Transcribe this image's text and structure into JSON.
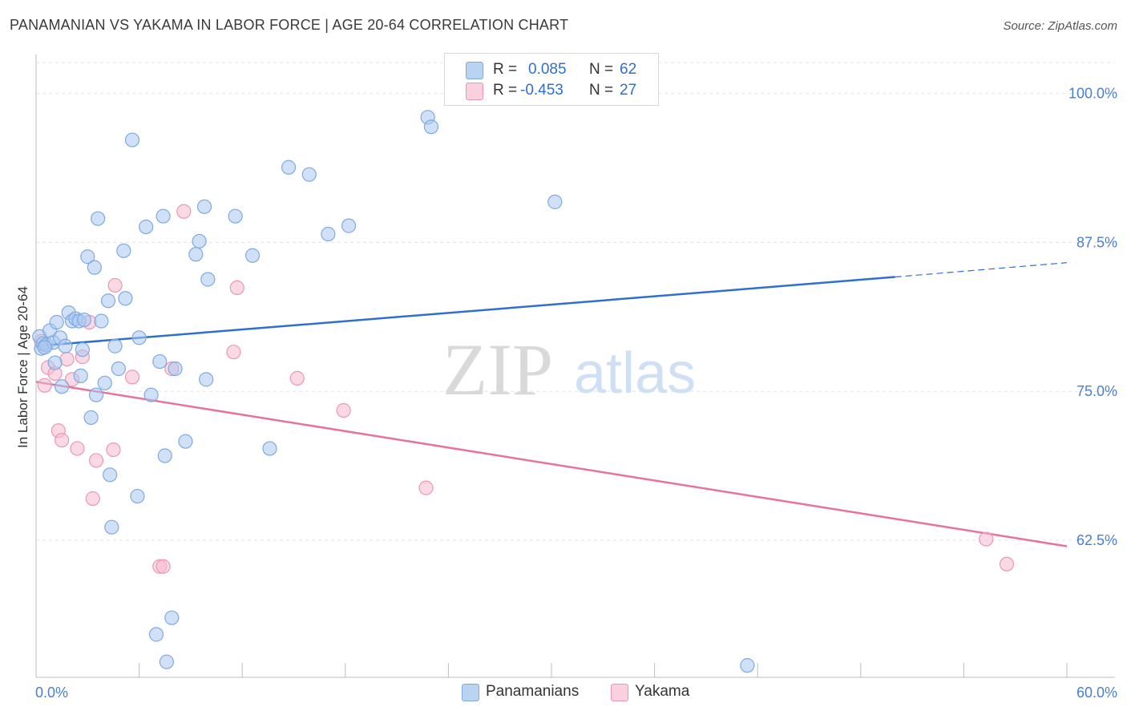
{
  "header": {
    "title": "PANAMANIAN VS YAKAMA IN LABOR FORCE | AGE 20-64 CORRELATION CHART",
    "source": "Source: ZipAtlas.com"
  },
  "watermark": {
    "zip": "ZIP",
    "atlas": "atlas"
  },
  "legend": {
    "rows": [
      {
        "r_label": "R =",
        "r_value": "0.085",
        "n_label": "N =",
        "n_value": "62",
        "color": "#a9c8f0"
      },
      {
        "r_label": "R =",
        "r_value": "-0.453",
        "n_label": "N =",
        "n_value": "27",
        "color": "#f6b9cf"
      }
    ]
  },
  "bottom_legend": {
    "items": [
      {
        "label": "Panamanians",
        "color": "#a9c8f0"
      },
      {
        "label": "Yakama",
        "color": "#f6b9cf"
      }
    ]
  },
  "chart_data": {
    "type": "scatter",
    "ylabel": "In Labor Force | Age 20-64",
    "xlim": [
      0,
      60
    ],
    "ylim": [
      51,
      103
    ],
    "x_tick_labels": [
      "0.0%",
      "60.0%"
    ],
    "y_ticks": [
      62.5,
      75.0,
      87.5,
      100.0
    ],
    "y_tick_labels": [
      "62.5%",
      "75.0%",
      "87.5%",
      "100.0%"
    ],
    "grid": true,
    "legend_position": "top-center",
    "colors": {
      "Panamanians": "#4a86d8",
      "Yakama": "#e8729c"
    },
    "series": [
      {
        "name": "Panamanians",
        "color": "#a9c8f0",
        "stroke": "#7fa9e0",
        "trend": {
          "x": [
            0,
            50
          ],
          "y": [
            78.8,
            84.6
          ],
          "dashed_to_x": 60,
          "dashed_to_y": 85.8,
          "color": "#2f6fd0"
        },
        "points": [
          [
            0.2,
            79.6
          ],
          [
            0.3,
            78.6
          ],
          [
            0.4,
            79.0
          ],
          [
            0.6,
            78.9
          ],
          [
            0.8,
            80.1
          ],
          [
            1.0,
            79.1
          ],
          [
            1.1,
            77.4
          ],
          [
            1.2,
            80.8
          ],
          [
            1.4,
            79.5
          ],
          [
            1.5,
            75.4
          ],
          [
            1.7,
            78.8
          ],
          [
            1.9,
            81.6
          ],
          [
            2.1,
            80.9
          ],
          [
            2.3,
            81.1
          ],
          [
            2.5,
            80.9
          ],
          [
            2.6,
            76.3
          ],
          [
            2.7,
            78.5
          ],
          [
            2.8,
            81.0
          ],
          [
            3.0,
            86.3
          ],
          [
            3.2,
            72.8
          ],
          [
            3.4,
            85.4
          ],
          [
            3.5,
            74.7
          ],
          [
            3.6,
            89.5
          ],
          [
            3.8,
            80.9
          ],
          [
            4.0,
            75.7
          ],
          [
            4.2,
            82.6
          ],
          [
            4.3,
            68.0
          ],
          [
            4.4,
            63.6
          ],
          [
            4.6,
            78.8
          ],
          [
            4.8,
            76.9
          ],
          [
            5.1,
            86.8
          ],
          [
            5.2,
            82.8
          ],
          [
            5.6,
            96.1
          ],
          [
            5.9,
            66.2
          ],
          [
            6.0,
            79.5
          ],
          [
            6.4,
            88.8
          ],
          [
            6.7,
            74.7
          ],
          [
            7.0,
            54.6
          ],
          [
            7.2,
            77.5
          ],
          [
            7.4,
            89.7
          ],
          [
            7.5,
            69.6
          ],
          [
            7.6,
            52.3
          ],
          [
            7.9,
            56.0
          ],
          [
            8.1,
            76.9
          ],
          [
            8.7,
            70.8
          ],
          [
            9.3,
            86.5
          ],
          [
            9.5,
            87.6
          ],
          [
            9.8,
            90.5
          ],
          [
            9.9,
            76.0
          ],
          [
            10.0,
            84.4
          ],
          [
            11.6,
            89.7
          ],
          [
            12.6,
            86.4
          ],
          [
            13.6,
            70.2
          ],
          [
            14.7,
            93.8
          ],
          [
            15.9,
            93.2
          ],
          [
            17.0,
            88.2
          ],
          [
            18.2,
            88.9
          ],
          [
            22.8,
            98.0
          ],
          [
            23.0,
            97.2
          ],
          [
            30.2,
            90.9
          ],
          [
            41.4,
            52.0
          ],
          [
            0.5,
            78.7
          ]
        ]
      },
      {
        "name": "Yakama",
        "color": "#f6b9cf",
        "stroke": "#eb97b4",
        "trend": {
          "x": [
            0,
            60
          ],
          "y": [
            75.8,
            62.0
          ],
          "color": "#e8729c"
        },
        "points": [
          [
            0.3,
            79.2
          ],
          [
            0.5,
            75.5
          ],
          [
            0.7,
            77.0
          ],
          [
            1.1,
            76.5
          ],
          [
            1.3,
            71.7
          ],
          [
            1.5,
            70.9
          ],
          [
            1.8,
            77.7
          ],
          [
            2.1,
            76.0
          ],
          [
            2.4,
            70.2
          ],
          [
            2.7,
            77.9
          ],
          [
            3.1,
            80.8
          ],
          [
            3.3,
            66.0
          ],
          [
            3.5,
            69.2
          ],
          [
            4.5,
            70.1
          ],
          [
            4.6,
            83.9
          ],
          [
            5.6,
            76.2
          ],
          [
            7.2,
            60.3
          ],
          [
            7.4,
            60.3
          ],
          [
            7.9,
            76.9
          ],
          [
            8.6,
            90.1
          ],
          [
            11.5,
            78.3
          ],
          [
            11.7,
            83.7
          ],
          [
            15.2,
            76.1
          ],
          [
            17.9,
            73.4
          ],
          [
            22.7,
            66.9
          ],
          [
            55.3,
            62.6
          ],
          [
            56.5,
            60.5
          ]
        ]
      }
    ]
  }
}
